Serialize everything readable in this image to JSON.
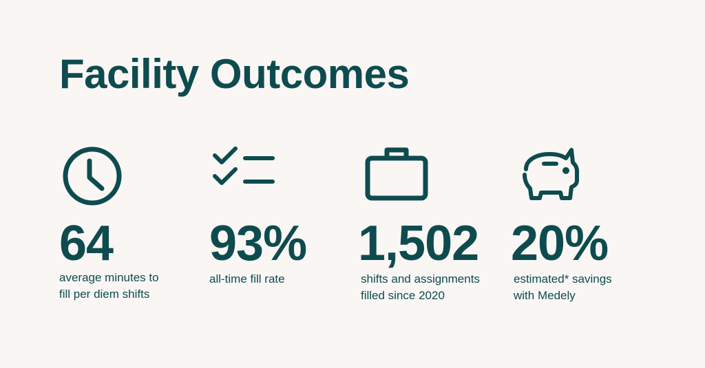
{
  "title": "Facility Outcomes",
  "colors": {
    "background": "#f9f6f4",
    "text": "#0e4b4f"
  },
  "stats": [
    {
      "icon": "clock-icon",
      "value": "64",
      "caption": [
        "average minutes to",
        "fill per diem shifts"
      ]
    },
    {
      "icon": "checklist-icon",
      "value": "93%",
      "caption": [
        "all-time fill rate"
      ]
    },
    {
      "icon": "briefcase-icon",
      "value": "1,502",
      "caption": [
        "shifts and assignments",
        "filled since 2020"
      ]
    },
    {
      "icon": "piggy-bank-icon",
      "value": "20%",
      "caption": [
        "estimated* savings",
        "with Medely"
      ]
    }
  ]
}
